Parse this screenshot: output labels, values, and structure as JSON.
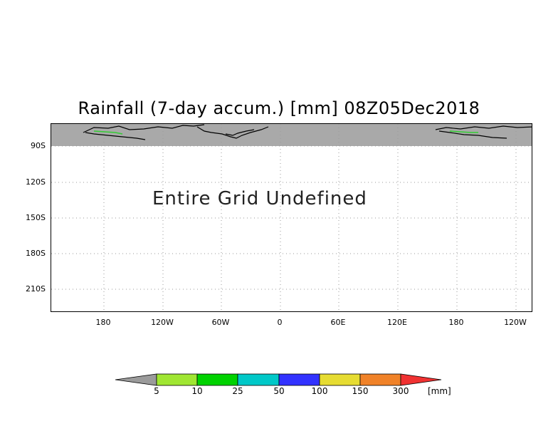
{
  "title": "Rainfall (7-day accum.) [mm] 08Z05Dec2018",
  "message": "Entire Grid Undefined",
  "y_axis_labels": [
    "90S",
    "120S",
    "150S",
    "180S",
    "210S"
  ],
  "x_axis_labels": [
    "180",
    "120W",
    "60W",
    "0",
    "60E",
    "120E",
    "180",
    "120W"
  ],
  "colorbar": {
    "unit": "[mm]",
    "thresholds": [
      "5",
      "10",
      "25",
      "50",
      "100",
      "150",
      "300"
    ],
    "colors": [
      "#9b9b9b",
      "#a0e632",
      "#00d200",
      "#00c8c8",
      "#3232ff",
      "#e6dc32",
      "#f08228",
      "#f03232"
    ]
  },
  "colors": {
    "undefined_band": "#a9a9a9",
    "grid": "#9a9a9a"
  }
}
